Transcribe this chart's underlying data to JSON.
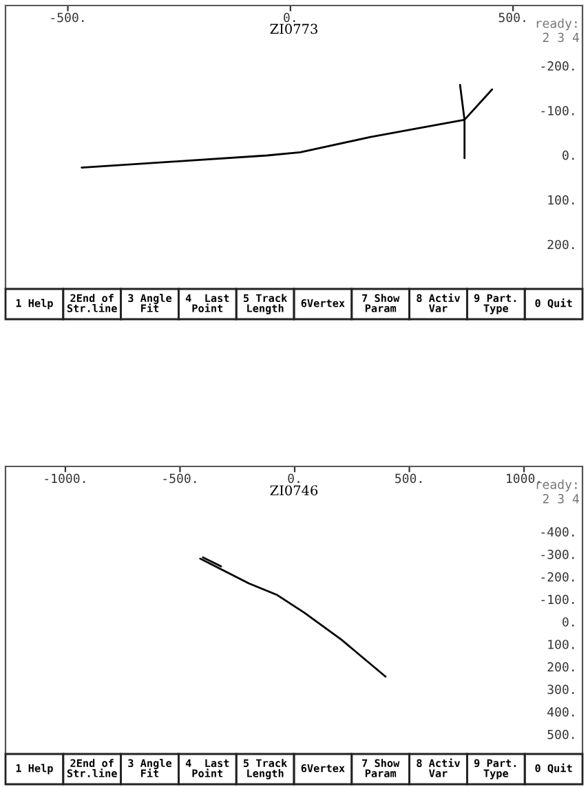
{
  "chart_data": [
    {
      "type": "line",
      "title": "ZI0773",
      "series": [
        {
          "color": "#000000",
          "x": [
            -469,
            -250,
            -53,
            22,
            178,
            281,
            391
          ],
          "values": [
            28,
            14,
            1,
            -6,
            -40,
            -59,
            -79
          ]
        },
        {
          "color": "#000000",
          "x": [
            381,
            391,
            391
          ],
          "values": [
            -157,
            -79,
            7
          ]
        },
        {
          "color": "#000000",
          "x": [
            391,
            453
          ],
          "values": [
            -79,
            -147
          ]
        }
      ],
      "xlim": [
        -640,
        656
      ],
      "ylim": [
        300,
        -335
      ],
      "xticks": [
        {
          "value": -500,
          "label": "-500."
        },
        {
          "value": 0,
          "label": "0."
        },
        {
          "value": 500,
          "label": "500."
        }
      ],
      "yticks": [
        {
          "value": -200,
          "label": "-200."
        },
        {
          "value": -100,
          "label": "-100."
        },
        {
          "value": 0,
          "label": "0."
        },
        {
          "value": 100,
          "label": "100."
        },
        {
          "value": 200,
          "label": "200."
        }
      ],
      "grid": false,
      "legend": false,
      "annotations": [
        "ready:",
        "2 3 4",
        "1 Help",
        "2End of\nStr.line",
        "3 Angle\nFit",
        "4  Last\nPoint",
        "5 Track\nLength",
        "6Vertex",
        "7 Show\nParam",
        "8 Activ\nVar",
        "9 Part.\nType",
        "0 Quit"
      ]
    },
    {
      "type": "line",
      "title": "ZI0746",
      "series": [
        {
          "color": "#000000",
          "x": [
            -412,
            -200,
            -79,
            42,
            204,
            396
          ],
          "values": [
            -280,
            -170,
            -120,
            -40,
            80,
            244
          ]
        },
        {
          "color": "#000000",
          "x": [
            -400,
            -321
          ],
          "values": [
            -286,
            -246
          ]
        }
      ],
      "xlim": [
        -1261,
        1255
      ],
      "ylim": [
        588,
        -690
      ],
      "xticks": [
        {
          "value": -1000,
          "label": "-1000."
        },
        {
          "value": -500,
          "label": "-500."
        },
        {
          "value": 0,
          "label": "0."
        },
        {
          "value": 500,
          "label": "500."
        },
        {
          "value": 1000,
          "label": "1000."
        }
      ],
      "yticks": [
        {
          "value": -400,
          "label": "-400."
        },
        {
          "value": -300,
          "label": "-300."
        },
        {
          "value": -200,
          "label": "-200."
        },
        {
          "value": -100,
          "label": "-100."
        },
        {
          "value": 0,
          "label": "0."
        },
        {
          "value": 100,
          "label": "100."
        },
        {
          "value": 200,
          "label": "200."
        },
        {
          "value": 300,
          "label": "300."
        },
        {
          "value": 400,
          "label": "400."
        },
        {
          "value": 500,
          "label": "500."
        }
      ],
      "grid": false,
      "legend": false,
      "annotations": [
        "ready:",
        "2 3 4",
        "1 Help",
        "2End of\nStr.line",
        "3 Angle\nFit",
        "4  Last\nPoint",
        "5 Track\nLength",
        "6Vertex",
        "7 Show\nParam",
        "8 Activ\nVar",
        "9 Part.\nType",
        "0 Quit"
      ]
    }
  ]
}
